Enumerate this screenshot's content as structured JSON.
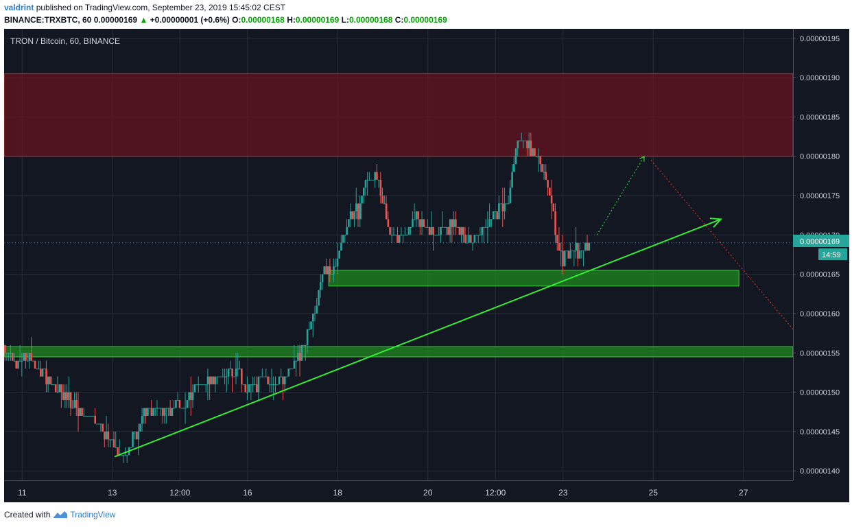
{
  "header": {
    "author": "valdrint",
    "published_text": "published on TradingView.com, September 23, 2019 15:45:02 CEST",
    "symbol_line": "BINANCE:TRXBTC, 60",
    "last_price": "0.00000169",
    "change": "+0.00000001 (+0.6%)",
    "open_label": "O:",
    "open": "0.00000168",
    "high_label": "H:",
    "high": "0.00000169",
    "low_label": "L:",
    "low": "0.00000168",
    "close_label": "C:",
    "close": "0.00000169"
  },
  "chart_title": "TRON / Bitcoin, 60, BINANCE",
  "price_tag": {
    "value": "0.00000169",
    "countdown": "14:59"
  },
  "footer": {
    "created_with": "Created with",
    "brand": "TradingView"
  },
  "colors": {
    "background": "#131722",
    "up": "#26a69a",
    "down": "#ef5350",
    "resistance_zone": "#6b1420",
    "support_zone": "#1f8a1f",
    "trendline": "#33ee33",
    "price_line": "#2196f3"
  },
  "chart_data": {
    "type": "candlestick",
    "title": "TRON / Bitcoin, 60, BINANCE",
    "y_axis": {
      "ylim": [
        1.388e-06,
        1.962e-06
      ],
      "ticks": [
        "0.00000195",
        "0.00000190",
        "0.00000185",
        "0.00000180",
        "0.00000175",
        "0.00000170",
        "0.00000165",
        "0.00000160",
        "0.00000155",
        "0.00000150",
        "0.00000145",
        "0.00000140"
      ],
      "tick_values": [
        1.95e-06,
        1.9e-06,
        1.85e-06,
        1.8e-06,
        1.75e-06,
        1.7e-06,
        1.65e-06,
        1.6e-06,
        1.55e-06,
        1.5e-06,
        1.45e-06,
        1.4e-06
      ]
    },
    "x_axis": {
      "xlim": [
        10.6,
        28.1
      ],
      "ticks": [
        "11",
        "13",
        "12:00",
        "16",
        "18",
        "20",
        "12:00",
        "23",
        "25",
        "27"
      ],
      "tick_positions": [
        11,
        13,
        14.5,
        16,
        18,
        20,
        21.5,
        23,
        25,
        27
      ]
    },
    "grid": true,
    "price_path": [
      [
        10.6,
        1.555e-06
      ],
      [
        10.9,
        1.54e-06
      ],
      [
        11.2,
        1.545e-06
      ],
      [
        11.4,
        1.53e-06
      ],
      [
        11.7,
        1.51e-06
      ],
      [
        12.0,
        1.495e-06
      ],
      [
        12.3,
        1.475e-06
      ],
      [
        12.7,
        1.46e-06
      ],
      [
        13.0,
        1.44e-06
      ],
      [
        13.15,
        1.42e-06
      ],
      [
        13.4,
        1.435e-06
      ],
      [
        13.6,
        1.445e-06
      ],
      [
        13.7,
        1.47e-06
      ],
      [
        14.0,
        1.48e-06
      ],
      [
        14.3,
        1.48e-06
      ],
      [
        14.6,
        1.485e-06
      ],
      [
        14.9,
        1.51e-06
      ],
      [
        15.2,
        1.515e-06
      ],
      [
        15.5,
        1.52e-06
      ],
      [
        15.85,
        1.525e-06
      ],
      [
        16.0,
        1.5e-06
      ],
      [
        16.3,
        1.515e-06
      ],
      [
        16.6,
        1.515e-06
      ],
      [
        16.9,
        1.52e-06
      ],
      [
        17.1,
        1.535e-06
      ],
      [
        17.3,
        1.565e-06
      ],
      [
        17.5,
        1.6e-06
      ],
      [
        17.7,
        1.66e-06
      ],
      [
        17.9,
        1.645e-06
      ],
      [
        18.1,
        1.69e-06
      ],
      [
        18.3,
        1.725e-06
      ],
      [
        18.5,
        1.73e-06
      ],
      [
        18.7,
        1.78e-06
      ],
      [
        18.9,
        1.77e-06
      ],
      [
        19.1,
        1.72e-06
      ],
      [
        19.3,
        1.69e-06
      ],
      [
        19.6,
        1.705e-06
      ],
      [
        19.8,
        1.725e-06
      ],
      [
        20.0,
        1.705e-06
      ],
      [
        20.3,
        1.7e-06
      ],
      [
        20.6,
        1.715e-06
      ],
      [
        20.9,
        1.69e-06
      ],
      [
        21.2,
        1.71e-06
      ],
      [
        21.5,
        1.725e-06
      ],
      [
        21.8,
        1.74e-06
      ],
      [
        22.0,
        1.815e-06
      ],
      [
        22.2,
        1.82e-06
      ],
      [
        22.4,
        1.8e-06
      ],
      [
        22.6,
        1.78e-06
      ],
      [
        22.75,
        1.755e-06
      ],
      [
        22.9,
        1.68e-06
      ],
      [
        23.0,
        1.665e-06
      ],
      [
        23.2,
        1.685e-06
      ],
      [
        23.4,
        1.68e-06
      ],
      [
        23.6,
        1.69e-06
      ]
    ],
    "zones": [
      {
        "type": "resistance",
        "x_range": [
          10.6,
          28.1
        ],
        "y_range": [
          1.8e-06,
          1.905e-06
        ]
      },
      {
        "type": "support",
        "x_range": [
          17.8,
          26.9
        ],
        "y_range": [
          1.635e-06,
          1.655e-06
        ]
      },
      {
        "type": "support",
        "x_range": [
          10.6,
          28.1
        ],
        "y_range": [
          1.545e-06,
          1.558e-06
        ]
      }
    ],
    "annotations": [
      {
        "type": "trendline_arrow",
        "from": [
          13.05,
          1.418e-06
        ],
        "to": [
          26.5,
          1.72e-06
        ]
      },
      {
        "type": "dotted_arrow_up",
        "from": [
          23.75,
          1.7e-06
        ],
        "to": [
          24.8,
          1.8e-06
        ]
      },
      {
        "type": "dotted_line_down",
        "from": [
          24.95,
          1.795e-06
        ],
        "to": [
          28.1,
          1.58e-06
        ]
      },
      {
        "type": "price_line",
        "value": 1.69e-06
      }
    ]
  }
}
